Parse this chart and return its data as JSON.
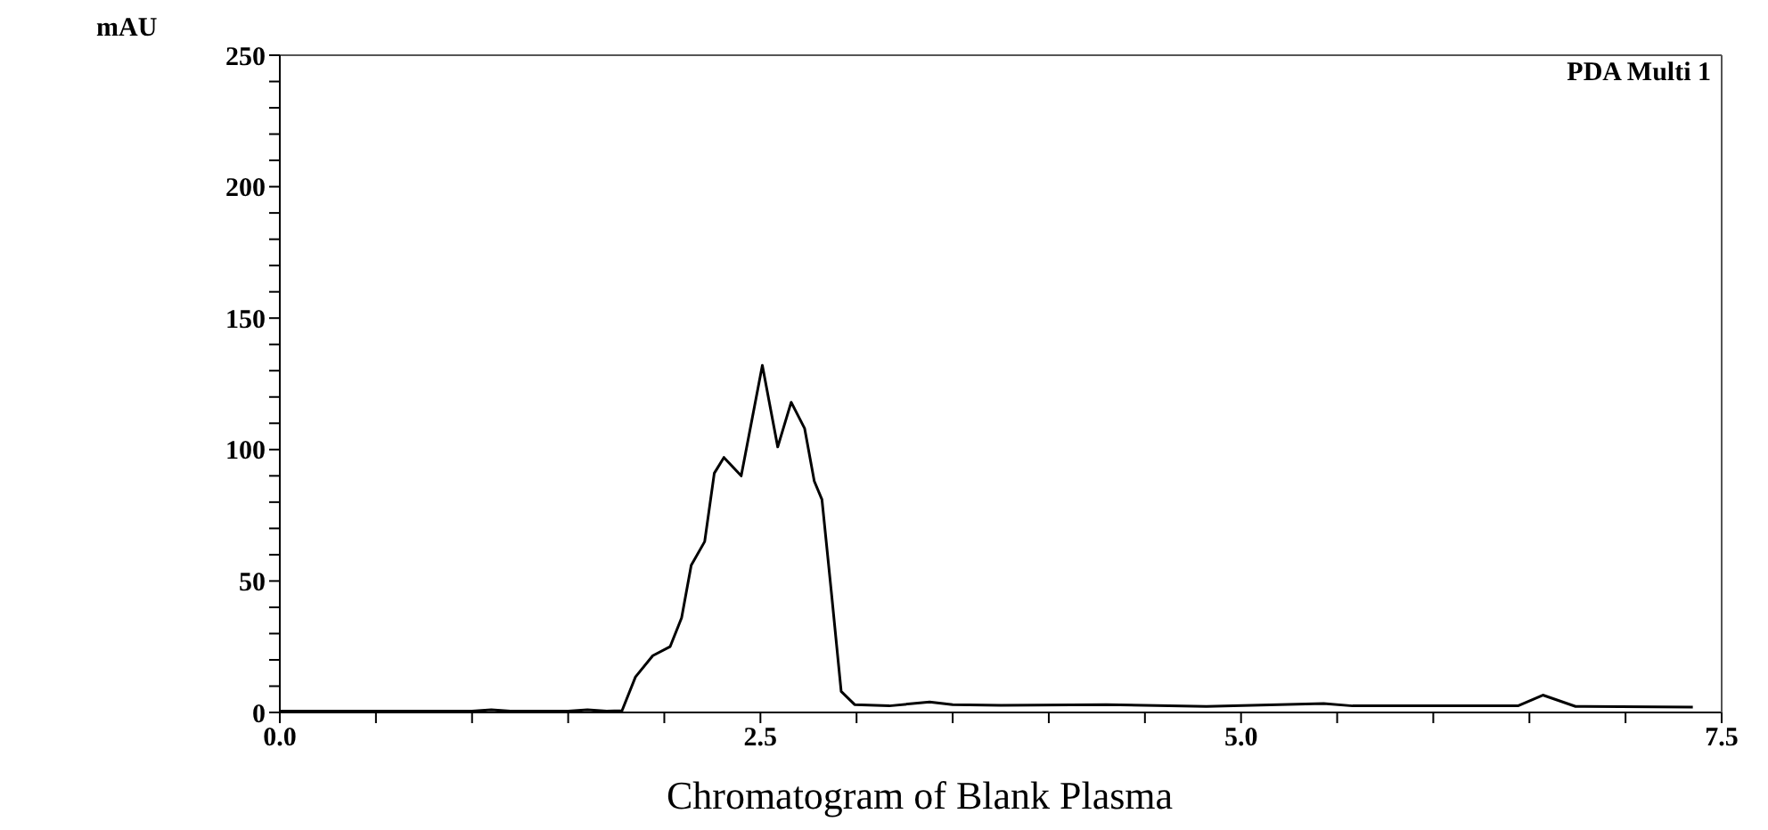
{
  "chart_data": {
    "type": "line",
    "title": "Chromatogram of Blank Plasma",
    "ylabel": "mAU",
    "annotations": [
      "PDA Multi 1"
    ],
    "x": [
      0,
      0.5,
      1.0,
      1.1,
      1.2,
      1.5,
      1.6,
      1.7,
      1.78,
      1.85,
      1.94,
      2.03,
      2.09,
      2.14,
      2.21,
      2.26,
      2.31,
      2.4,
      2.51,
      2.59,
      2.66,
      2.73,
      2.78,
      2.82,
      2.87,
      2.92,
      2.99,
      3.17,
      3.38,
      3.5,
      3.75,
      4.3,
      4.82,
      5.43,
      5.58,
      6.44,
      6.57,
      6.74,
      7.35
    ],
    "series": [
      {
        "color": "#000000",
        "values": [
          0.5,
          0.5,
          0.5,
          1,
          0.5,
          0.5,
          1,
          0.5,
          0.7,
          13.5,
          21.6,
          25,
          36,
          56,
          65,
          91,
          97,
          90,
          132,
          101,
          118,
          108,
          88,
          81,
          45,
          8,
          3,
          2.5,
          4,
          3,
          2.7,
          3,
          2.3,
          3.4,
          2.5,
          2.5,
          6.6,
          2.3,
          2
        ]
      }
    ],
    "xlim": [
      0,
      7.5
    ],
    "ylim": [
      0,
      250
    ],
    "xticks": [
      {
        "value": 0,
        "label": "0.0"
      },
      {
        "value": 0.5,
        "label": null
      },
      {
        "value": 1,
        "label": null
      },
      {
        "value": 1.5,
        "label": null
      },
      {
        "value": 2,
        "label": null
      },
      {
        "value": 2.5,
        "label": "2.5"
      },
      {
        "value": 3,
        "label": null
      },
      {
        "value": 3.5,
        "label": null
      },
      {
        "value": 4,
        "label": null
      },
      {
        "value": 4.5,
        "label": null
      },
      {
        "value": 5,
        "label": "5.0"
      },
      {
        "value": 5.5,
        "label": null
      },
      {
        "value": 6,
        "label": null
      },
      {
        "value": 6.5,
        "label": null
      },
      {
        "value": 7,
        "label": null
      },
      {
        "value": 7.5,
        "label": "7.5"
      }
    ],
    "yticks": [
      0,
      {
        "value": 10,
        "label": null
      },
      {
        "value": 20,
        "label": null
      },
      {
        "value": 30,
        "label": null
      },
      {
        "value": 40,
        "label": null
      },
      50,
      {
        "value": 60,
        "label": null
      },
      {
        "value": 70,
        "label": null
      },
      {
        "value": 80,
        "label": null
      },
      {
        "value": 90,
        "label": null
      },
      100,
      {
        "value": 110,
        "label": null
      },
      {
        "value": 120,
        "label": null
      },
      {
        "value": 130,
        "label": null
      },
      {
        "value": 140,
        "label": null
      },
      150,
      {
        "value": 160,
        "label": null
      },
      {
        "value": 170,
        "label": null
      },
      {
        "value": 180,
        "label": null
      },
      {
        "value": 190,
        "label": null
      },
      200,
      {
        "value": 210,
        "label": null
      },
      {
        "value": 220,
        "label": null
      },
      {
        "value": 230,
        "label": null
      },
      {
        "value": 240,
        "label": null
      },
      250
    ],
    "grid": false,
    "legend": false,
    "marker": "none",
    "line_style": "solid"
  }
}
